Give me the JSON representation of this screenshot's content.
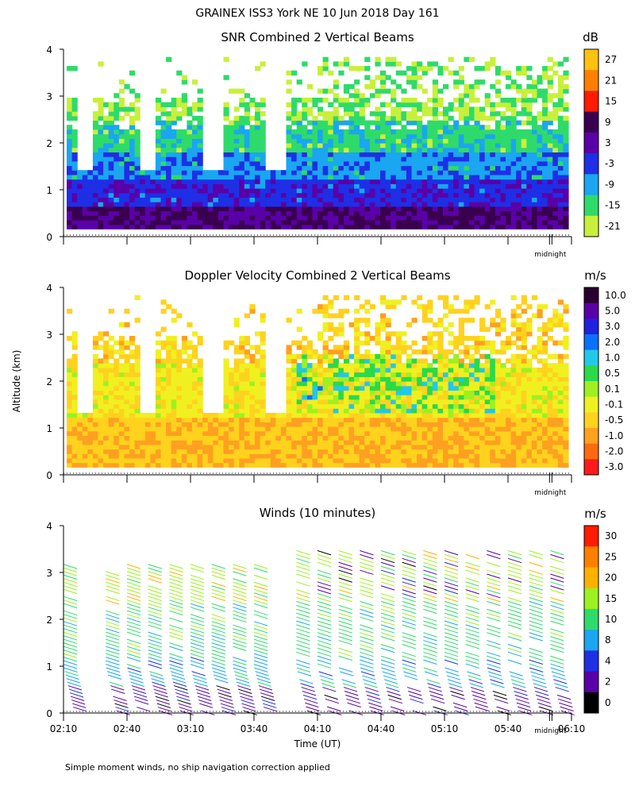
{
  "page_title": "GRAINEX ISS3 York NE  10 Jun 2018 Day 161",
  "y_axis_label": "Altitude (km)",
  "x_axis_label": "Time (UT)",
  "footnote": "Simple moment winds, no ship navigation correction applied",
  "midnight_label": "midnight",
  "time_ticks": [
    "02:10",
    "02:40",
    "03:10",
    "03:40",
    "04:10",
    "04:40",
    "05:10",
    "05:40",
    "06:10"
  ],
  "altitude_ticks": [
    "0",
    "1",
    "2",
    "3",
    "4"
  ],
  "chart_data": [
    {
      "type": "heatmap",
      "title": "SNR Combined 2 Vertical Beams",
      "unit": "dB",
      "ylim": [
        0,
        4
      ],
      "xlim": [
        "02:10",
        "06:10"
      ],
      "colorbar": {
        "labels": [
          "27",
          "21",
          "15",
          "9",
          "3",
          "-3",
          "-9",
          "-15",
          "-21"
        ],
        "colors": [
          "#ffc20e",
          "#ff7f00",
          "#ff1a00",
          "#3a004f",
          "#5a00a8",
          "#1e2fe6",
          "#1aa6f0",
          "#2edb6a",
          "#c8f03a"
        ]
      },
      "gaps_below_km": 1.5,
      "gap_times": [
        "02:20",
        "02:50",
        "03:20",
        "03:50"
      ]
    },
    {
      "type": "heatmap",
      "title": "Doppler Velocity Combined 2 Vertical Beams",
      "unit": "m/s",
      "ylim": [
        0,
        4
      ],
      "xlim": [
        "02:10",
        "06:10"
      ],
      "colorbar": {
        "labels": [
          "10.0",
          "5.0",
          "3.0",
          "2.0",
          "1.0",
          "0.5",
          "0.1",
          "-0.1",
          "-0.5",
          "-1.0",
          "-2.0",
          "-3.0"
        ],
        "colors": [
          "#2a0030",
          "#5a00a8",
          "#2020e0",
          "#0a70ff",
          "#22c8e8",
          "#2bd94a",
          "#9ef020",
          "#f0f020",
          "#ffd21e",
          "#ffa020",
          "#ff6a10",
          "#ff1a1a"
        ]
      },
      "gaps_below_km": 1.4,
      "gap_times": [
        "02:20",
        "02:50",
        "03:20",
        "03:50"
      ]
    },
    {
      "type": "scatter",
      "title": "Winds (10 minutes)",
      "unit": "m/s",
      "ylim": [
        0,
        4
      ],
      "xlim": [
        "02:10",
        "06:10"
      ],
      "colorbar": {
        "labels": [
          "30",
          "25",
          "20",
          "15",
          "10",
          "8",
          "4",
          "2",
          "0"
        ],
        "colors": [
          "#ff1a00",
          "#ff7f00",
          "#ffb000",
          "#9ef020",
          "#2edb6a",
          "#1aa6f0",
          "#1e2fe6",
          "#5a00a8",
          "#000000"
        ]
      },
      "profile_times": [
        "02:10",
        "02:30",
        "02:40",
        "02:50",
        "03:00",
        "03:10",
        "03:20",
        "03:30",
        "03:40",
        "04:00",
        "04:10",
        "04:20",
        "04:30",
        "04:40",
        "04:50",
        "05:00",
        "05:10",
        "05:20",
        "05:30",
        "05:40",
        "05:50",
        "06:00"
      ]
    }
  ]
}
